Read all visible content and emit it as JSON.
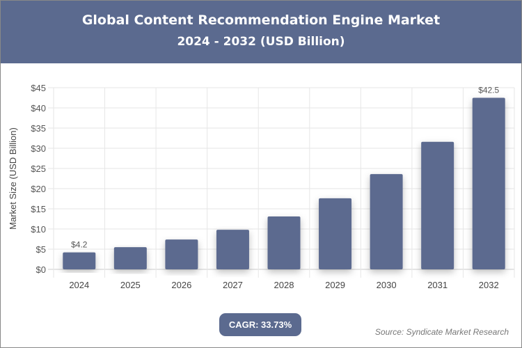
{
  "chart_data": {
    "type": "bar",
    "title": "Global Content Recommendation Engine Market",
    "subtitle": "2024 - 2032 (USD Billion)",
    "ylabel": "Market Size (USD Billion)",
    "xlabel": "",
    "categories": [
      "2024",
      "2025",
      "2026",
      "2027",
      "2028",
      "2029",
      "2030",
      "2031",
      "2032"
    ],
    "values": [
      4.2,
      5.5,
      7.4,
      9.8,
      13.1,
      17.6,
      23.6,
      31.6,
      42.5
    ],
    "data_labels": {
      "0": "$4.2",
      "8": "$42.5"
    },
    "ylim": [
      0,
      45
    ],
    "yticks": [
      "$0",
      "$5",
      "$10",
      "$15",
      "$20",
      "$25",
      "$30",
      "$35",
      "$40",
      "$45"
    ],
    "grid": true,
    "bar_color": "#5b6a8f"
  },
  "cagr": "CAGR: 33.73%",
  "source": "Source: Syndicate Market Research"
}
